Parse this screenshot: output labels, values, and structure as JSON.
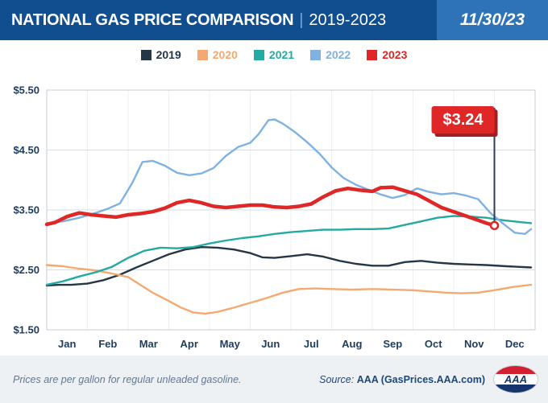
{
  "header": {
    "title": "NATIONAL GAS PRICE COMPARISON",
    "divider": "|",
    "years": "2019-2023",
    "date": "11/30/23"
  },
  "footer": {
    "note": "Prices are per gallon for regular unleaded gasoline.",
    "source_label": "Source:",
    "source_text": "AAA (GasPrices.AAA.com)",
    "logo_text": "AAA"
  },
  "chart_data": {
    "type": "line",
    "title": "National Gas Price Comparison | 2019-2023",
    "units": "USD per gallon",
    "ylim": [
      1.5,
      5.5
    ],
    "yticks": [
      5.5,
      4.5,
      3.5,
      2.5,
      1.5
    ],
    "ytick_labels": [
      "$5.50",
      "$4.50",
      "$3.50",
      "$2.50",
      "$1.50"
    ],
    "x_tick_labels": [
      "Jan",
      "Feb",
      "Mar",
      "Apr",
      "May",
      "Jun",
      "Jul",
      "Aug",
      "Sep",
      "Oct",
      "Nov",
      "Dec"
    ],
    "x_range_months": [
      0,
      12
    ],
    "grid": "horizontal-major, faint-vertical-month-lines",
    "legend_position": "top-center",
    "annotation": {
      "label": "$3.24",
      "series": "2023",
      "x": 11.0,
      "y": 3.24
    },
    "series": [
      {
        "name": "2019",
        "color": "#253746",
        "width": 2.4,
        "points": [
          [
            0,
            2.24
          ],
          [
            0.3,
            2.25
          ],
          [
            0.6,
            2.25
          ],
          [
            1,
            2.27
          ],
          [
            1.4,
            2.33
          ],
          [
            1.8,
            2.42
          ],
          [
            2.2,
            2.54
          ],
          [
            2.6,
            2.65
          ],
          [
            3,
            2.76
          ],
          [
            3.4,
            2.84
          ],
          [
            3.8,
            2.88
          ],
          [
            4.2,
            2.87
          ],
          [
            4.6,
            2.84
          ],
          [
            5,
            2.78
          ],
          [
            5.3,
            2.71
          ],
          [
            5.6,
            2.7
          ],
          [
            6,
            2.73
          ],
          [
            6.4,
            2.76
          ],
          [
            6.8,
            2.72
          ],
          [
            7.2,
            2.65
          ],
          [
            7.6,
            2.6
          ],
          [
            8,
            2.57
          ],
          [
            8.4,
            2.57
          ],
          [
            8.8,
            2.63
          ],
          [
            9.2,
            2.65
          ],
          [
            9.6,
            2.62
          ],
          [
            10,
            2.6
          ],
          [
            10.4,
            2.59
          ],
          [
            10.8,
            2.58
          ],
          [
            11.3,
            2.56
          ],
          [
            11.9,
            2.54
          ]
        ]
      },
      {
        "name": "2020",
        "color": "#f5a971",
        "width": 2.4,
        "points": [
          [
            0,
            2.58
          ],
          [
            0.4,
            2.56
          ],
          [
            0.8,
            2.52
          ],
          [
            1.2,
            2.49
          ],
          [
            1.6,
            2.44
          ],
          [
            2,
            2.38
          ],
          [
            2.3,
            2.25
          ],
          [
            2.6,
            2.12
          ],
          [
            3,
            1.98
          ],
          [
            3.3,
            1.87
          ],
          [
            3.6,
            1.79
          ],
          [
            3.9,
            1.77
          ],
          [
            4.2,
            1.8
          ],
          [
            4.6,
            1.87
          ],
          [
            5,
            1.95
          ],
          [
            5.4,
            2.03
          ],
          [
            5.8,
            2.12
          ],
          [
            6.2,
            2.18
          ],
          [
            6.6,
            2.19
          ],
          [
            7,
            2.18
          ],
          [
            7.5,
            2.17
          ],
          [
            8,
            2.18
          ],
          [
            8.5,
            2.17
          ],
          [
            9,
            2.16
          ],
          [
            9.4,
            2.14
          ],
          [
            9.8,
            2.12
          ],
          [
            10.2,
            2.11
          ],
          [
            10.6,
            2.12
          ],
          [
            11,
            2.16
          ],
          [
            11.5,
            2.22
          ],
          [
            11.9,
            2.25
          ]
        ]
      },
      {
        "name": "2021",
        "color": "#23aaa2",
        "width": 2.4,
        "points": [
          [
            0,
            2.25
          ],
          [
            0.4,
            2.31
          ],
          [
            0.8,
            2.39
          ],
          [
            1.2,
            2.46
          ],
          [
            1.6,
            2.55
          ],
          [
            2,
            2.7
          ],
          [
            2.4,
            2.82
          ],
          [
            2.8,
            2.87
          ],
          [
            3.2,
            2.86
          ],
          [
            3.6,
            2.88
          ],
          [
            4,
            2.94
          ],
          [
            4.4,
            2.99
          ],
          [
            4.8,
            3.03
          ],
          [
            5.2,
            3.06
          ],
          [
            5.6,
            3.1
          ],
          [
            6,
            3.13
          ],
          [
            6.4,
            3.15
          ],
          [
            6.8,
            3.17
          ],
          [
            7.2,
            3.17
          ],
          [
            7.6,
            3.18
          ],
          [
            8,
            3.18
          ],
          [
            8.4,
            3.19
          ],
          [
            8.8,
            3.25
          ],
          [
            9.2,
            3.31
          ],
          [
            9.6,
            3.37
          ],
          [
            10,
            3.4
          ],
          [
            10.4,
            3.39
          ],
          [
            10.8,
            3.37
          ],
          [
            11.2,
            3.33
          ],
          [
            11.6,
            3.3
          ],
          [
            11.9,
            3.28
          ]
        ]
      },
      {
        "name": "2022",
        "color": "#7fb2e0",
        "width": 2.4,
        "points": [
          [
            0,
            3.28
          ],
          [
            0.4,
            3.31
          ],
          [
            0.8,
            3.37
          ],
          [
            1.2,
            3.45
          ],
          [
            1.5,
            3.52
          ],
          [
            1.8,
            3.61
          ],
          [
            2.1,
            3.95
          ],
          [
            2.35,
            4.3
          ],
          [
            2.6,
            4.32
          ],
          [
            2.9,
            4.24
          ],
          [
            3.2,
            4.12
          ],
          [
            3.5,
            4.08
          ],
          [
            3.8,
            4.11
          ],
          [
            4.1,
            4.2
          ],
          [
            4.4,
            4.4
          ],
          [
            4.7,
            4.55
          ],
          [
            5,
            4.62
          ],
          [
            5.2,
            4.76
          ],
          [
            5.45,
            5.0
          ],
          [
            5.6,
            5.01
          ],
          [
            5.8,
            4.94
          ],
          [
            6.1,
            4.8
          ],
          [
            6.4,
            4.63
          ],
          [
            6.7,
            4.44
          ],
          [
            7,
            4.21
          ],
          [
            7.3,
            4.03
          ],
          [
            7.6,
            3.92
          ],
          [
            7.9,
            3.84
          ],
          [
            8.2,
            3.76
          ],
          [
            8.5,
            3.7
          ],
          [
            8.8,
            3.75
          ],
          [
            9.1,
            3.86
          ],
          [
            9.4,
            3.8
          ],
          [
            9.7,
            3.76
          ],
          [
            10,
            3.78
          ],
          [
            10.3,
            3.74
          ],
          [
            10.6,
            3.68
          ],
          [
            10.9,
            3.45
          ],
          [
            11.2,
            3.28
          ],
          [
            11.5,
            3.12
          ],
          [
            11.75,
            3.1
          ],
          [
            11.9,
            3.18
          ]
        ]
      },
      {
        "name": "2023",
        "color": "#e02727",
        "width": 4.5,
        "points": [
          [
            0,
            3.26
          ],
          [
            0.2,
            3.29
          ],
          [
            0.5,
            3.39
          ],
          [
            0.8,
            3.45
          ],
          [
            1.1,
            3.42
          ],
          [
            1.4,
            3.4
          ],
          [
            1.7,
            3.38
          ],
          [
            2,
            3.42
          ],
          [
            2.3,
            3.44
          ],
          [
            2.6,
            3.47
          ],
          [
            2.9,
            3.53
          ],
          [
            3.2,
            3.62
          ],
          [
            3.5,
            3.66
          ],
          [
            3.8,
            3.62
          ],
          [
            4.1,
            3.56
          ],
          [
            4.4,
            3.54
          ],
          [
            4.7,
            3.56
          ],
          [
            5,
            3.58
          ],
          [
            5.3,
            3.58
          ],
          [
            5.6,
            3.55
          ],
          [
            5.9,
            3.54
          ],
          [
            6.2,
            3.56
          ],
          [
            6.5,
            3.6
          ],
          [
            6.8,
            3.72
          ],
          [
            7.1,
            3.82
          ],
          [
            7.4,
            3.86
          ],
          [
            7.7,
            3.83
          ],
          [
            8,
            3.81
          ],
          [
            8.2,
            3.87
          ],
          [
            8.5,
            3.88
          ],
          [
            8.8,
            3.82
          ],
          [
            9.1,
            3.76
          ],
          [
            9.4,
            3.65
          ],
          [
            9.7,
            3.54
          ],
          [
            10,
            3.47
          ],
          [
            10.3,
            3.4
          ],
          [
            10.6,
            3.33
          ],
          [
            10.8,
            3.28
          ],
          [
            11,
            3.24
          ]
        ]
      }
    ]
  }
}
